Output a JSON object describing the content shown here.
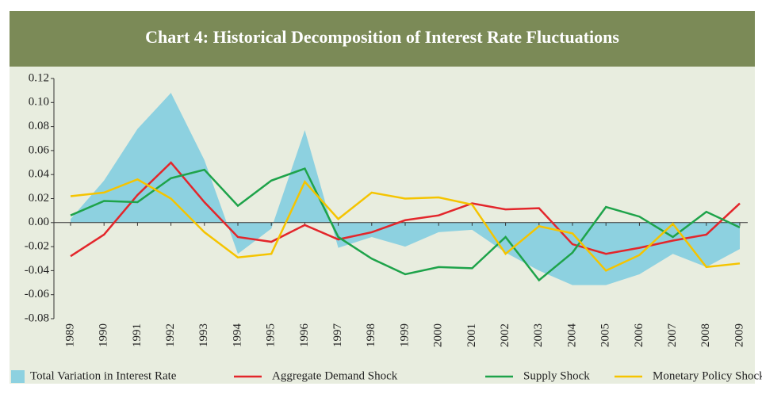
{
  "chart_data": {
    "type": "line",
    "title": "Chart 4: Historical Decomposition of Interest Rate Fluctuations",
    "categories": [
      "1989",
      "1990",
      "1991",
      "1992",
      "1993",
      "1994",
      "1995",
      "1996",
      "1997",
      "1998",
      "1999",
      "2000",
      "2001",
      "2002",
      "2003",
      "2004",
      "2005",
      "2006",
      "2007",
      "2008",
      "2009"
    ],
    "ylim": [
      -0.08,
      0.12
    ],
    "yticks": [
      -0.08,
      -0.06,
      -0.04,
      -0.02,
      {
        "value": 0,
        "label": "0.00"
      },
      0.02,
      0.04,
      0.06,
      0.08,
      {
        "value": 0.1,
        "label": "0.10"
      },
      0.12
    ],
    "legend": "bottom",
    "series": [
      {
        "name": "Total Variation in Interest Rate",
        "color": "#8dd1e0",
        "style": "area",
        "values": [
          0.003,
          0.035,
          0.078,
          0.108,
          0.052,
          -0.026,
          -0.005,
          0.077,
          -0.021,
          -0.012,
          -0.02,
          -0.008,
          -0.006,
          -0.025,
          -0.04,
          -0.052,
          -0.052,
          -0.043,
          -0.026,
          -0.037,
          -0.022
        ]
      },
      {
        "name": "Aggregate Demand Shock",
        "color": "#e3262b",
        "style": "line",
        "values": [
          -0.028,
          -0.01,
          0.023,
          0.05,
          0.017,
          -0.012,
          -0.016,
          -0.002,
          -0.014,
          -0.008,
          0.002,
          0.006,
          0.016,
          0.011,
          0.012,
          -0.018,
          -0.026,
          -0.021,
          -0.015,
          -0.01,
          0.016
        ]
      },
      {
        "name": "Supply Shock",
        "color": "#1ea34a",
        "style": "line",
        "values": [
          0.006,
          0.018,
          0.017,
          0.037,
          0.044,
          0.014,
          0.035,
          0.045,
          -0.012,
          -0.03,
          -0.043,
          -0.037,
          -0.038,
          -0.012,
          -0.048,
          -0.025,
          0.013,
          0.005,
          -0.012,
          0.009,
          -0.004
        ]
      },
      {
        "name": "Monetary Policy Shock",
        "color": "#f5c400",
        "style": "line",
        "values": [
          0.022,
          0.025,
          0.036,
          0.02,
          -0.008,
          -0.029,
          -0.026,
          0.034,
          0.003,
          0.025,
          0.02,
          0.021,
          0.015,
          -0.026,
          -0.003,
          -0.009,
          -0.04,
          -0.027,
          -0.001,
          -0.037,
          -0.034
        ]
      }
    ]
  }
}
